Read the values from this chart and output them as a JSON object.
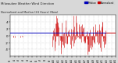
{
  "title_line1": "Milwaukee Weather Wind Direction",
  "title_line2": "Normalized and Median (24 Hours) (New)",
  "bg_color": "#d8d8d8",
  "plot_bg_color": "#ffffff",
  "grid_color": "#bbbbbb",
  "bar_color": "#cc0000",
  "median_color": "#0000bb",
  "ylim": [
    -6,
    6
  ],
  "xlim": [
    0,
    287
  ],
  "n_points": 288,
  "median_val": 0.9,
  "active_start": 115,
  "active_end": 262,
  "early_points": [
    [
      8,
      -0.5
    ],
    [
      9,
      -0.4
    ],
    [
      12,
      -0.45
    ],
    [
      28,
      -0.5
    ],
    [
      32,
      -0.4
    ],
    [
      35,
      -0.35
    ]
  ],
  "late_line_start": 262,
  "late_line_end": 287,
  "late_line_val": 0.9
}
